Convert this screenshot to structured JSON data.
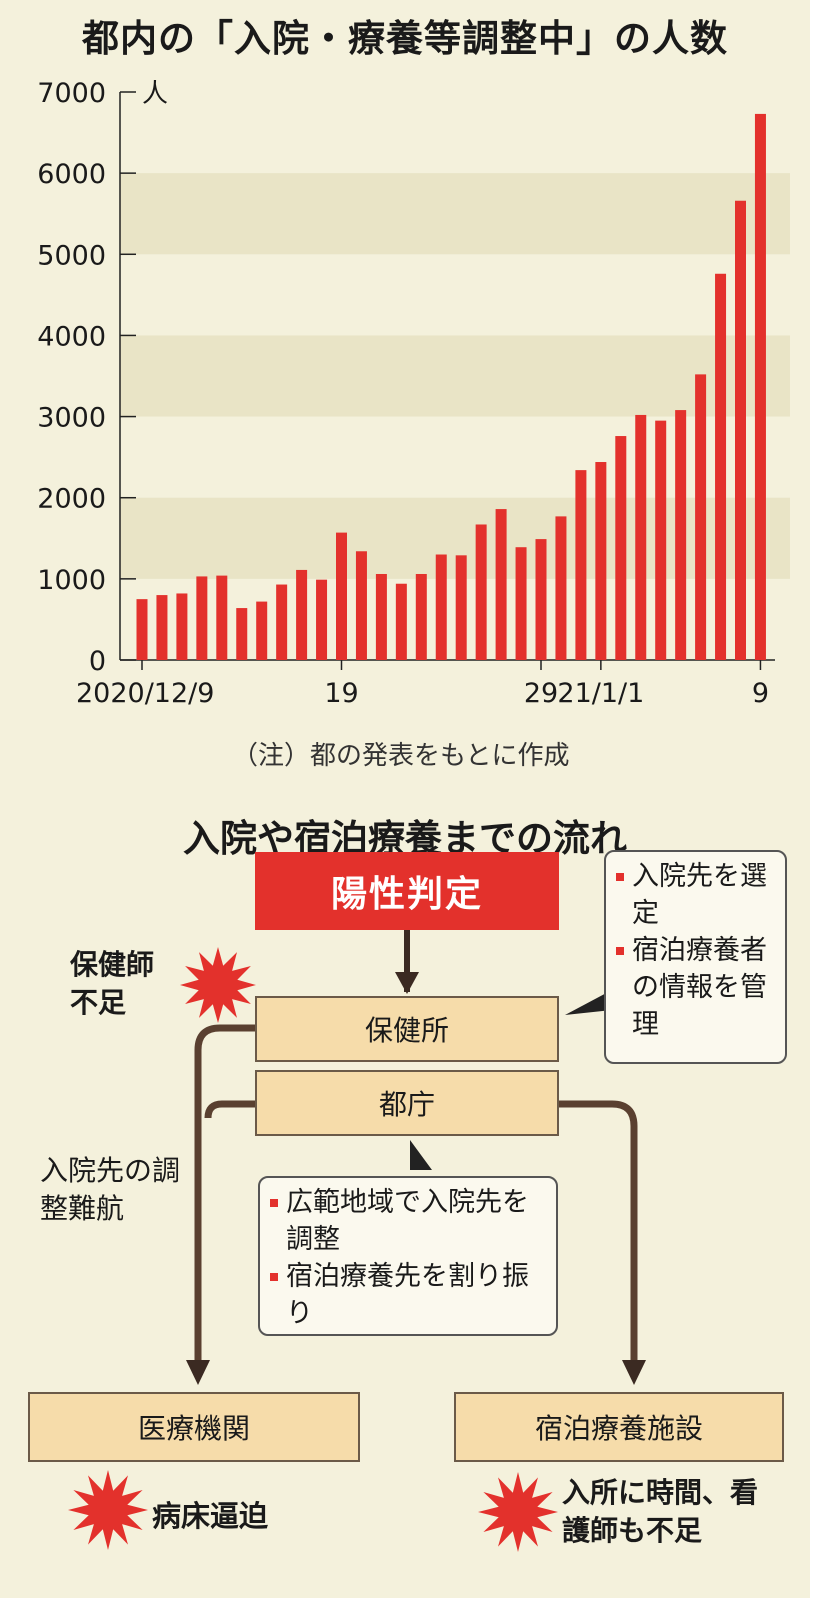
{
  "chart_data": {
    "type": "bar",
    "title": "都内の「入院・療養等調整中」の人数",
    "ylabel": "人",
    "ylim": [
      0,
      7000
    ],
    "yticks": [
      "0",
      "1000",
      "2000",
      "3000",
      "4000",
      "5000",
      "6000",
      "7000"
    ],
    "x_dates": [
      "2020-12-09",
      "2020-12-10",
      "2020-12-11",
      "2020-12-12",
      "2020-12-13",
      "2020-12-14",
      "2020-12-15",
      "2020-12-16",
      "2020-12-17",
      "2020-12-18",
      "2020-12-19",
      "2020-12-20",
      "2020-12-21",
      "2020-12-22",
      "2020-12-23",
      "2020-12-24",
      "2020-12-25",
      "2020-12-26",
      "2020-12-27",
      "2020-12-28",
      "2020-12-29",
      "2020-12-30",
      "2020-12-31",
      "2021-01-01",
      "2021-01-02",
      "2021-01-03",
      "2021-01-04",
      "2021-01-05",
      "2021-01-06",
      "2021-01-07",
      "2021-01-08",
      "2021-01-09"
    ],
    "values": [
      750,
      800,
      820,
      1030,
      1040,
      640,
      720,
      930,
      1110,
      990,
      1570,
      1340,
      1060,
      940,
      1060,
      1300,
      1290,
      1670,
      1860,
      1390,
      1490,
      1770,
      2340,
      2440,
      2760,
      3020,
      2950,
      3080,
      3520,
      4760,
      5660,
      6730
    ],
    "xtick_labels": [
      {
        "date": "2020-12-09",
        "label": "2020/12/9"
      },
      {
        "date": "2020-12-19",
        "label": "19"
      },
      {
        "date": "2020-12-29",
        "label": "29"
      },
      {
        "date": "2021-01-01",
        "label": "21/1/1"
      },
      {
        "date": "2021-01-09",
        "label": "9"
      }
    ],
    "bar_color": "#e3312c",
    "band_color": "#e9e4c6",
    "note": "（注）都の発表をもとに作成"
  },
  "flow": {
    "title": "入院や宿泊療養までの流れ",
    "positive": "陽性判定",
    "health_center": "保健所",
    "metro_gov": "都庁",
    "hospital": "医療機関",
    "hotel": "宿泊療養施設",
    "callout_top": [
      "入院先を選定",
      "宿泊療養者の情報を管理"
    ],
    "callout_mid": [
      "広範地域で入院先を調整",
      "宿泊療養先を割り振り"
    ],
    "issue_nurse": "保健師不足",
    "issue_route": "入院先の調整難航",
    "issue_beds": "病床逼迫",
    "issue_hotel": "入所に時間、看護師も不足",
    "accent": "#e3312c",
    "box_fill": "#f6dcaa"
  }
}
